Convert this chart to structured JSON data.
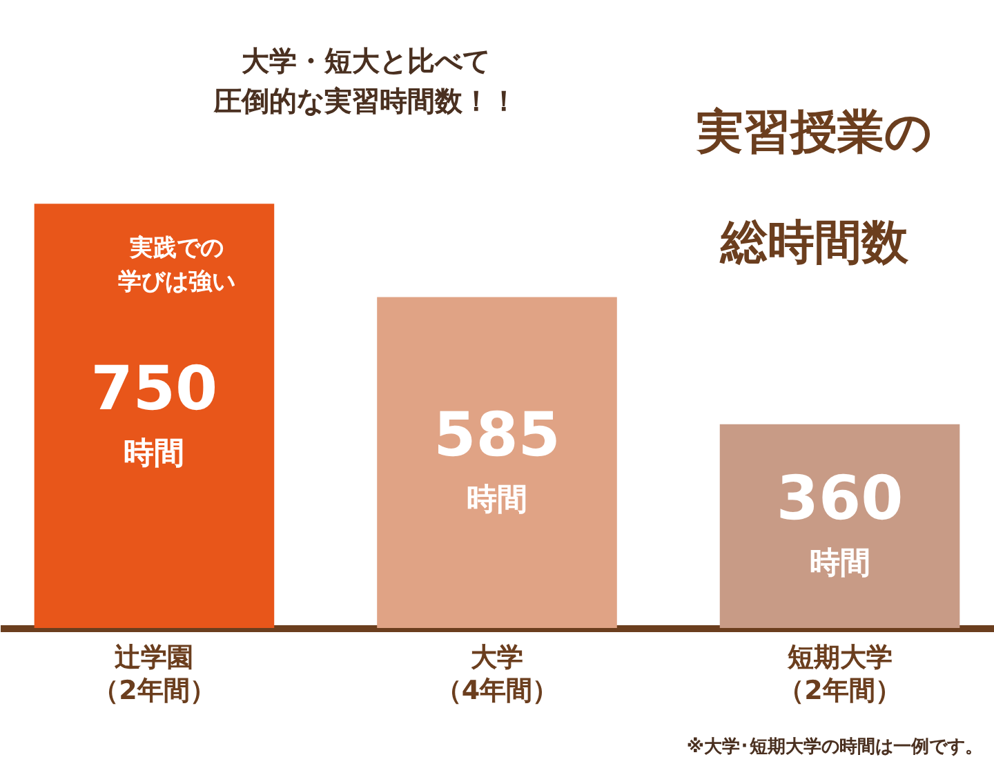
{
  "chart_data": {
    "type": "bar",
    "title": "実習授業の総時間数",
    "categories": [
      "辻学園（2年間）",
      "大学（4年間）",
      "短期大学（2年間）"
    ],
    "values": [
      750,
      585,
      360
    ],
    "colors": [
      "#e8561a",
      "#e0a385",
      "#c89b86"
    ],
    "data_labels": true,
    "annotations": [
      "大学・短大と比べて圧倒的な実習時間数！！",
      "実践での学びは強い",
      "※大学･短期大学の時間は一例です。",
      "時間",
      "時間",
      "時間"
    ]
  }
}
